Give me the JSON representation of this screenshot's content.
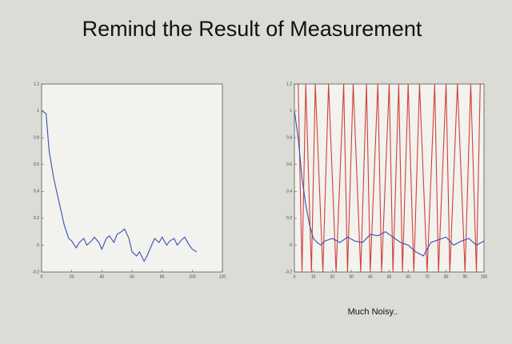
{
  "slide": {
    "title": "Remind the Result of Measurement",
    "note": "Much Noisy.."
  },
  "chart_data": [
    {
      "type": "line",
      "xlim": [
        0,
        120
      ],
      "ylim": [
        -0.2,
        1.2
      ],
      "xticks": [
        0,
        20,
        40,
        60,
        80,
        100,
        120
      ],
      "yticks": [
        -0.2,
        0,
        0.2,
        0.4,
        0.6,
        0.8,
        1,
        1.2
      ],
      "series": [
        {
          "color": "#3a4fb0",
          "x": [
            0,
            3,
            5,
            8,
            10,
            13,
            15,
            18,
            20,
            23,
            25,
            28,
            30,
            33,
            35,
            38,
            40,
            43,
            45,
            48,
            50,
            53,
            55,
            58,
            60,
            63,
            65,
            68,
            70,
            73,
            75,
            78,
            80,
            83,
            85,
            88,
            90,
            93,
            95,
            98,
            100,
            103
          ],
          "values": [
            1.0,
            0.98,
            0.7,
            0.5,
            0.4,
            0.25,
            0.15,
            0.05,
            0.03,
            -0.02,
            0.02,
            0.05,
            0.0,
            0.03,
            0.06,
            0.02,
            -0.03,
            0.05,
            0.07,
            0.02,
            0.08,
            0.1,
            0.12,
            0.05,
            -0.05,
            -0.08,
            -0.05,
            -0.12,
            -0.08,
            0.0,
            0.05,
            0.02,
            0.06,
            0.0,
            0.03,
            0.05,
            0.0,
            0.04,
            0.06,
            0.0,
            -0.03,
            -0.05
          ]
        }
      ]
    },
    {
      "type": "line",
      "xlim": [
        0,
        100
      ],
      "ylim": [
        -0.2,
        1.2
      ],
      "xticks": [
        0,
        10,
        20,
        30,
        40,
        50,
        60,
        70,
        80,
        90,
        100
      ],
      "yticks": [
        -0.2,
        0,
        0.2,
        0.4,
        0.6,
        0.8,
        1,
        1.2
      ],
      "series": [
        {
          "color": "#d0403a",
          "x": [
            2,
            4,
            6,
            9,
            11,
            15,
            18,
            22,
            26,
            28,
            31,
            35,
            38,
            40,
            44,
            46,
            50,
            52,
            55,
            57,
            60,
            63,
            66,
            70,
            74,
            76,
            80,
            82,
            86,
            90,
            93,
            96,
            98
          ],
          "values": [
            1.2,
            -0.2,
            1.2,
            -0.2,
            1.2,
            -0.2,
            1.2,
            -0.2,
            1.2,
            -0.2,
            1.2,
            -0.2,
            1.2,
            -0.2,
            1.2,
            -0.2,
            1.2,
            -0.2,
            1.2,
            -0.2,
            1.2,
            -0.2,
            1.2,
            -0.2,
            1.2,
            -0.2,
            1.2,
            -0.2,
            1.2,
            -0.2,
            1.2,
            -0.2,
            1.2
          ]
        },
        {
          "color": "#3a4fb0",
          "x": [
            0,
            2,
            4,
            6,
            8,
            10,
            12,
            14,
            16,
            20,
            24,
            28,
            32,
            36,
            40,
            44,
            48,
            52,
            56,
            60,
            64,
            68,
            72,
            76,
            80,
            84,
            88,
            92,
            96,
            100
          ],
          "values": [
            1.0,
            0.8,
            0.5,
            0.3,
            0.15,
            0.05,
            0.02,
            0.0,
            0.03,
            0.05,
            0.02,
            0.06,
            0.03,
            0.02,
            0.08,
            0.07,
            0.1,
            0.06,
            0.02,
            0.0,
            -0.05,
            -0.08,
            0.02,
            0.04,
            0.06,
            0.0,
            0.03,
            0.05,
            0.0,
            0.03
          ]
        }
      ]
    }
  ]
}
